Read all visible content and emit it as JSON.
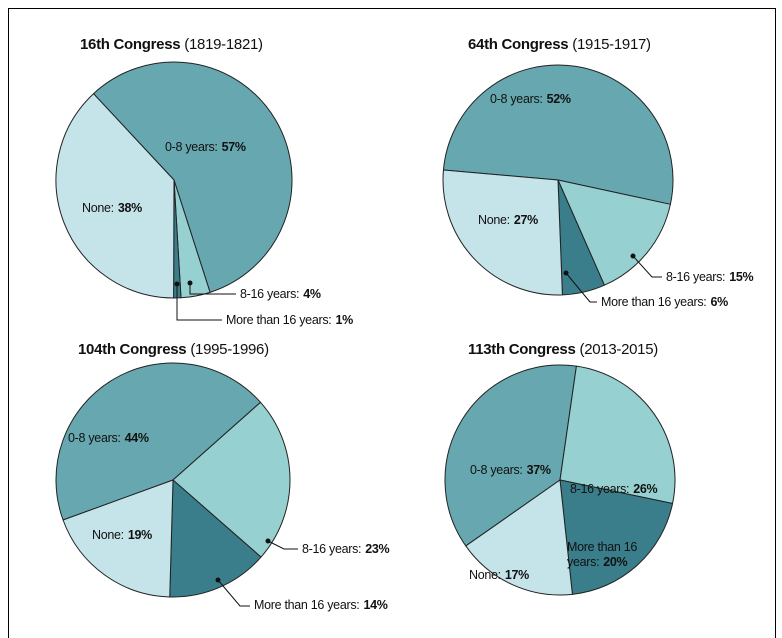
{
  "chart_data": [
    {
      "type": "pie",
      "title": "16th Congress",
      "subtitle": "(1819-1821)",
      "categories": [
        "0-8 years:",
        "8-16 years:",
        "More than 16 years:",
        "None:"
      ],
      "values": [
        57,
        4,
        1,
        38
      ],
      "value_labels": [
        "57%",
        "4%",
        "1%",
        "38%"
      ],
      "colors": [
        "#67a8b0",
        "#97d0d0",
        "#3a7e8c",
        "#c5e4ea"
      ]
    },
    {
      "type": "pie",
      "title": "64th Congress",
      "subtitle": "(1915-1917)",
      "categories": [
        "0-8 years:",
        "8-16 years:",
        "More than 16 years:",
        "None:"
      ],
      "values": [
        52,
        15,
        6,
        27
      ],
      "value_labels": [
        "52%",
        "15%",
        "6%",
        "27%"
      ],
      "colors": [
        "#67a8b0",
        "#97d0d0",
        "#3a7e8c",
        "#c5e4ea"
      ]
    },
    {
      "type": "pie",
      "title": "104th Congress",
      "subtitle": "(1995-1996)",
      "categories": [
        "0-8 years:",
        "8-16 years:",
        "More than 16 years:",
        "None:"
      ],
      "values": [
        44,
        23,
        14,
        19
      ],
      "value_labels": [
        "44%",
        "23%",
        "14%",
        "19%"
      ],
      "colors": [
        "#67a8b0",
        "#97d0d0",
        "#3a7e8c",
        "#c5e4ea"
      ]
    },
    {
      "type": "pie",
      "title": "113th Congress",
      "subtitle": "(2013-2015)",
      "categories": [
        "0-8 years:",
        "8-16 years:",
        "More than 16 years:",
        "None:"
      ],
      "values": [
        37,
        26,
        20,
        17
      ],
      "value_labels": [
        "37%",
        "26%",
        "20%",
        "17%"
      ],
      "colors": [
        "#67a8b0",
        "#97d0d0",
        "#3a7e8c",
        "#c5e4ea"
      ]
    }
  ]
}
